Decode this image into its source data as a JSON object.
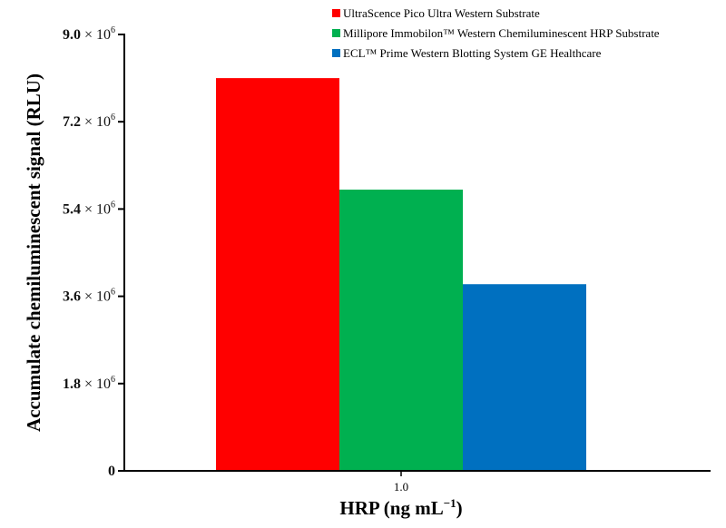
{
  "chart_data": {
    "type": "bar",
    "categories": [
      "1.0"
    ],
    "series": [
      {
        "name": "UltraScence Pico Ultra Western Substrate",
        "values": [
          8100000
        ],
        "color": "#ff0000"
      },
      {
        "name": "Millipore Immobilon™ Western Chemiluminescent HRP Substrate",
        "values": [
          5800000
        ],
        "color": "#00b050"
      },
      {
        "name": "ECL™ Prime Western Blotting System GE Healthcare",
        "values": [
          3850000
        ],
        "color": "#0070c0"
      }
    ],
    "ylim": [
      0,
      9000000
    ],
    "yticks": [
      {
        "value": 0,
        "mantissa": "0",
        "times": "",
        "base": "",
        "exp": ""
      },
      {
        "value": 1800000,
        "mantissa": "1.8",
        "times": "×",
        "base": "10",
        "exp": "6"
      },
      {
        "value": 3600000,
        "mantissa": "3.6",
        "times": "×",
        "base": "10",
        "exp": "6"
      },
      {
        "value": 5400000,
        "mantissa": "5.4",
        "times": "×",
        "base": "10",
        "exp": "6"
      },
      {
        "value": 7200000,
        "mantissa": "7.2",
        "times": "×",
        "base": "10",
        "exp": "6"
      },
      {
        "value": 9000000,
        "mantissa": "9.0",
        "times": "×",
        "base": "10",
        "exp": "6"
      }
    ],
    "ylabel": "Accumulate chemiluminescent signal (RLU)",
    "xlabel": {
      "main": "HRP (ng mL",
      "sup": "−1",
      "close": ")"
    },
    "legend_position": "top-right",
    "grid": false
  }
}
